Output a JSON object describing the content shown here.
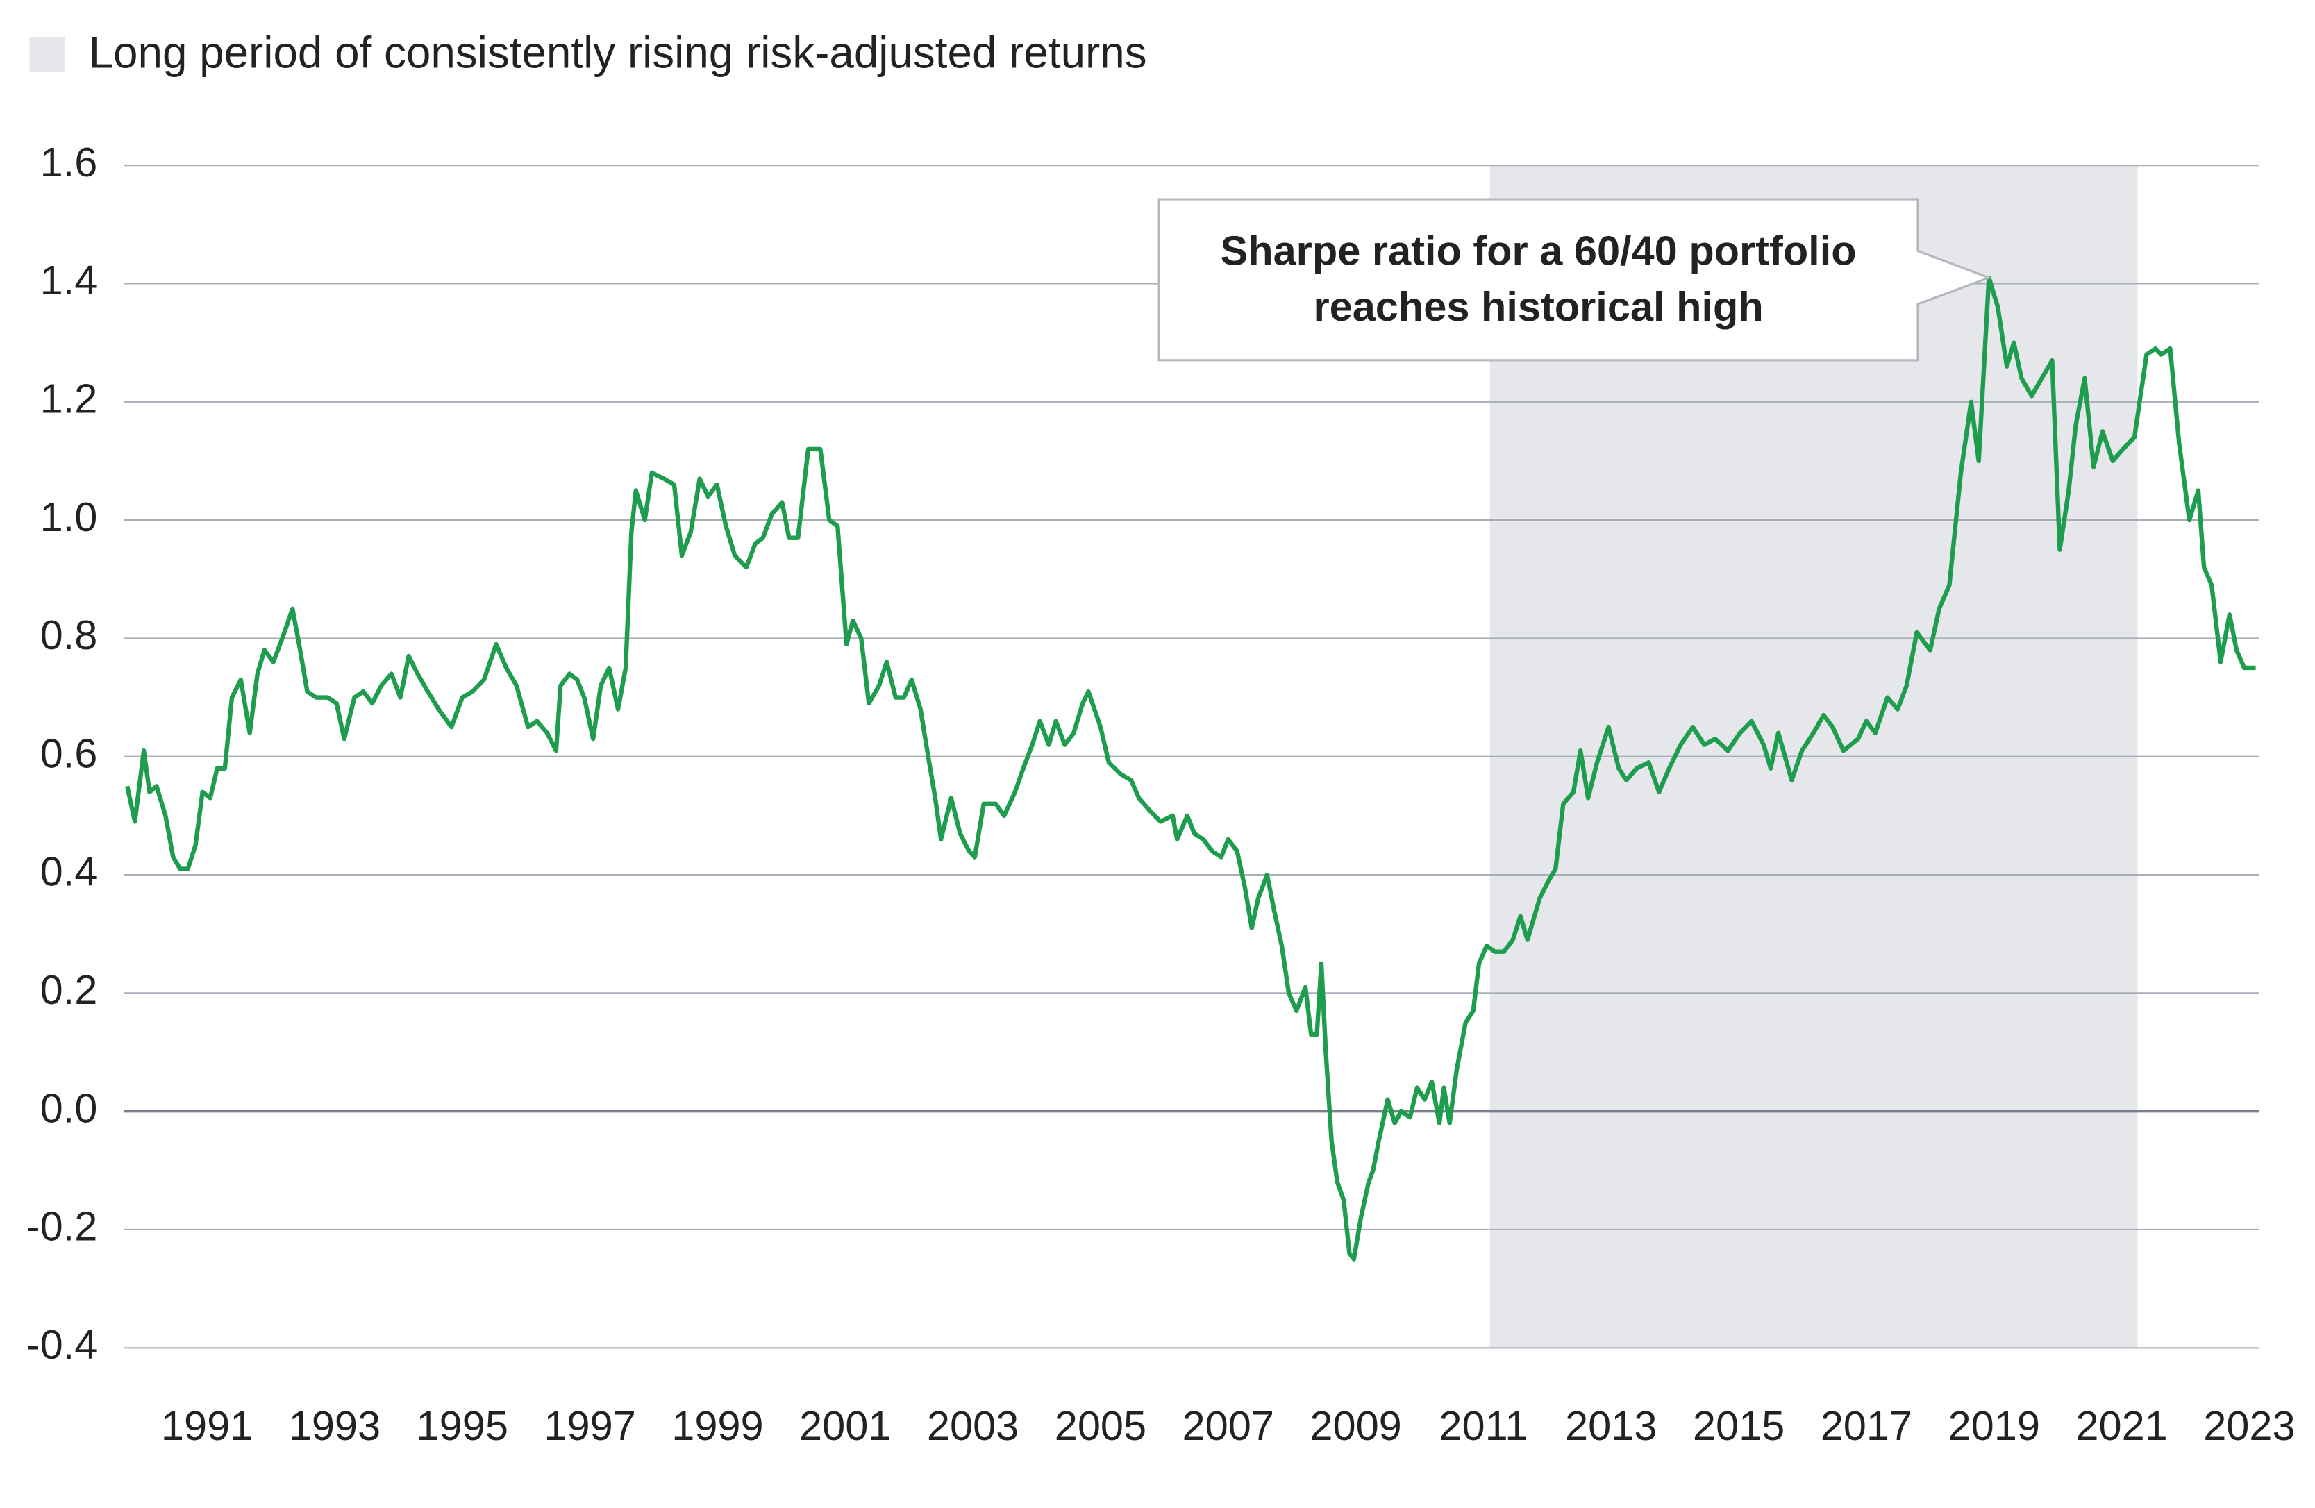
{
  "chart_data": {
    "type": "line",
    "color": "#1f9d4f",
    "shaded_region": {
      "label": "Long period of consistently rising risk-adjusted returns",
      "x": [
        2011.1,
        2021.25
      ],
      "color": "#e6e7eb"
    },
    "annotation": {
      "text": [
        "Sharpe ratio for a 60/40 portfolio",
        "reaches historical high"
      ],
      "x": 2018.92,
      "y": 1.41
    },
    "xlim": [
      1989.7,
      2023.15
    ],
    "xticks": [
      1991,
      1993,
      1995,
      1997,
      1999,
      2001,
      2003,
      2005,
      2007,
      2009,
      2011,
      2013,
      2015,
      2017,
      2019,
      2021,
      2023
    ],
    "ylim": [
      -0.4,
      1.6
    ],
    "yticks": [
      -0.4,
      -0.2,
      {
        "value": 0,
        "label": "0.0"
      },
      0.2,
      0.4,
      0.6,
      0.8,
      {
        "value": 1,
        "label": "1.0"
      },
      1.2,
      1.4,
      1.6
    ],
    "grid": true,
    "x": [
      1989.75,
      1989.87,
      1990.01,
      1990.1,
      1990.21,
      1990.35,
      1990.47,
      1990.58,
      1990.7,
      1990.82,
      1990.93,
      1991.05,
      1991.16,
      1991.28,
      1991.39,
      1991.53,
      1991.67,
      1991.79,
      1991.9,
      1992.04,
      1992.18,
      1992.34,
      1992.46,
      1992.57,
      1992.71,
      1992.89,
      1993.03,
      1993.15,
      1993.31,
      1993.45,
      1993.59,
      1993.73,
      1993.89,
      1994.03,
      1994.16,
      1994.3,
      1994.46,
      1994.63,
      1994.83,
      1995.0,
      1995.16,
      1995.34,
      1995.53,
      1995.69,
      1995.85,
      1996.03,
      1996.17,
      1996.33,
      1996.47,
      1996.54,
      1996.68,
      1996.8,
      1996.91,
      1997.05,
      1997.17,
      1997.3,
      1997.44,
      1997.56,
      1997.65,
      1997.72,
      1997.86,
      1997.97,
      1998.16,
      1998.32,
      1998.44,
      1998.58,
      1998.72,
      1998.85,
      1998.99,
      1999.13,
      1999.27,
      1999.45,
      1999.59,
      1999.71,
      1999.85,
      2000.01,
      2000.12,
      2000.26,
      2000.42,
      2000.61,
      2000.75,
      2000.88,
      2001.02,
      2001.12,
      2001.25,
      2001.37,
      2001.53,
      2001.65,
      2001.79,
      2001.92,
      2002.04,
      2002.18,
      2002.3,
      2002.41,
      2002.5,
      2002.66,
      2002.8,
      2002.94,
      2003.03,
      2003.17,
      2003.36,
      2003.49,
      2003.66,
      2003.79,
      2003.93,
      2004.05,
      2004.19,
      2004.3,
      2004.44,
      2004.58,
      2004.72,
      2004.81,
      2005.0,
      2005.13,
      2005.32,
      2005.48,
      2005.6,
      2005.76,
      2005.94,
      2006.13,
      2006.2,
      2006.36,
      2006.47,
      2006.61,
      2006.75,
      2006.89,
      2007.0,
      2007.14,
      2007.26,
      2007.37,
      2007.47,
      2007.61,
      2007.72,
      2007.84,
      2007.95,
      2008.07,
      2008.21,
      2008.3,
      2008.39,
      2008.46,
      2008.53,
      2008.62,
      2008.71,
      2008.81,
      2008.9,
      2008.97,
      2009.08,
      2009.2,
      2009.27,
      2009.36,
      2009.5,
      2009.61,
      2009.71,
      2009.85,
      2009.96,
      2010.08,
      2010.19,
      2010.31,
      2010.38,
      2010.47,
      2010.58,
      2010.72,
      2010.84,
      2010.93,
      2011.05,
      2011.18,
      2011.32,
      2011.46,
      2011.58,
      2011.69,
      2011.88,
      2012.02,
      2012.13,
      2012.25,
      2012.41,
      2012.52,
      2012.64,
      2012.78,
      2012.96,
      2013.12,
      2013.24,
      2013.4,
      2013.59,
      2013.75,
      2013.91,
      2014.09,
      2014.28,
      2014.46,
      2014.63,
      2014.83,
      2015.02,
      2015.2,
      2015.39,
      2015.5,
      2015.62,
      2015.83,
      2015.99,
      2016.17,
      2016.33,
      2016.47,
      2016.64,
      2016.87,
      2017.0,
      2017.14,
      2017.33,
      2017.49,
      2017.63,
      2017.79,
      2018.0,
      2018.14,
      2018.3,
      2018.48,
      2018.64,
      2018.76,
      2018.92,
      2019.06,
      2019.2,
      2019.31,
      2019.43,
      2019.59,
      2019.75,
      2019.91,
      2020.03,
      2020.17,
      2020.28,
      2020.42,
      2020.56,
      2020.7,
      2020.86,
      2021.02,
      2021.2,
      2021.39,
      2021.53,
      2021.62,
      2021.76,
      2021.9,
      2022.06,
      2022.2,
      2022.29,
      2022.41,
      2022.55,
      2022.69,
      2022.8,
      2022.92,
      2023.1
    ],
    "values": [
      0.55,
      0.49,
      0.61,
      0.54,
      0.55,
      0.5,
      0.43,
      0.41,
      0.41,
      0.45,
      0.54,
      0.53,
      0.58,
      0.58,
      0.7,
      0.73,
      0.64,
      0.74,
      0.78,
      0.76,
      0.8,
      0.85,
      0.78,
      0.71,
      0.7,
      0.7,
      0.69,
      0.63,
      0.7,
      0.71,
      0.69,
      0.72,
      0.74,
      0.7,
      0.77,
      0.74,
      0.71,
      0.68,
      0.65,
      0.7,
      0.71,
      0.73,
      0.79,
      0.75,
      0.72,
      0.65,
      0.66,
      0.64,
      0.61,
      0.72,
      0.74,
      0.73,
      0.7,
      0.63,
      0.72,
      0.75,
      0.68,
      0.75,
      0.98,
      1.05,
      1.0,
      1.08,
      1.07,
      1.06,
      0.94,
      0.98,
      1.07,
      1.04,
      1.06,
      0.99,
      0.94,
      0.92,
      0.96,
      0.97,
      1.01,
      1.03,
      0.97,
      0.97,
      1.12,
      1.12,
      1.0,
      0.99,
      0.79,
      0.83,
      0.8,
      0.69,
      0.72,
      0.76,
      0.7,
      0.7,
      0.73,
      0.68,
      0.6,
      0.53,
      0.46,
      0.53,
      0.47,
      0.44,
      0.43,
      0.52,
      0.52,
      0.5,
      0.54,
      0.58,
      0.62,
      0.66,
      0.62,
      0.66,
      0.62,
      0.64,
      0.69,
      0.71,
      0.65,
      0.59,
      0.57,
      0.56,
      0.53,
      0.51,
      0.49,
      0.5,
      0.46,
      0.5,
      0.47,
      0.46,
      0.44,
      0.43,
      0.46,
      0.44,
      0.38,
      0.31,
      0.36,
      0.4,
      0.34,
      0.28,
      0.2,
      0.17,
      0.21,
      0.13,
      0.13,
      0.25,
      0.1,
      -0.05,
      -0.12,
      -0.15,
      -0.24,
      -0.25,
      -0.18,
      -0.12,
      -0.1,
      -0.05,
      0.02,
      -0.02,
      0.0,
      -0.01,
      0.04,
      0.02,
      0.05,
      -0.02,
      0.04,
      -0.02,
      0.07,
      0.15,
      0.17,
      0.25,
      0.28,
      0.27,
      0.27,
      0.29,
      0.33,
      0.29,
      0.36,
      0.39,
      0.41,
      0.52,
      0.54,
      0.61,
      0.53,
      0.59,
      0.65,
      0.58,
      0.56,
      0.58,
      0.59,
      0.54,
      0.58,
      0.62,
      0.65,
      0.62,
      0.63,
      0.61,
      0.64,
      0.66,
      0.62,
      0.58,
      0.64,
      0.56,
      0.61,
      0.64,
      0.67,
      0.65,
      0.61,
      0.63,
      0.66,
      0.64,
      0.7,
      0.68,
      0.72,
      0.81,
      0.78,
      0.85,
      0.89,
      1.08,
      1.2,
      1.1,
      1.41,
      1.36,
      1.26,
      1.3,
      1.24,
      1.21,
      1.24,
      1.27,
      0.95,
      1.05,
      1.16,
      1.24,
      1.09,
      1.15,
      1.1,
      1.12,
      1.14,
      1.28,
      1.29,
      1.28,
      1.29,
      1.13,
      1.0,
      1.05,
      0.92,
      0.89,
      0.76,
      0.84,
      0.78,
      0.75,
      0.75
    ]
  }
}
